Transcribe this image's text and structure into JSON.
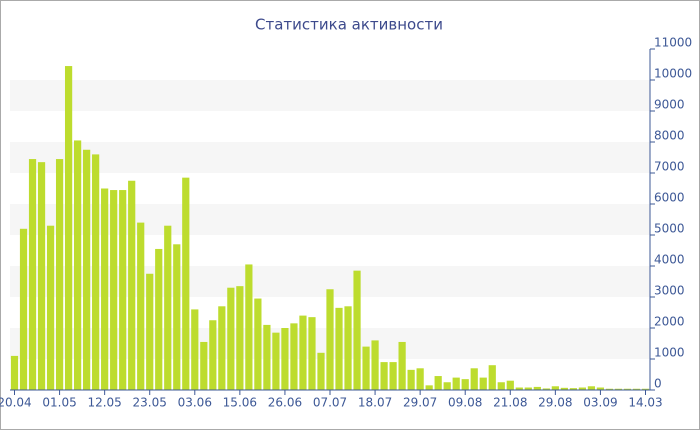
{
  "chart_data": {
    "type": "bar",
    "title": "Статистика активности",
    "categories": [
      "20.04",
      null,
      null,
      null,
      null,
      "01.05",
      null,
      null,
      null,
      null,
      "12.05",
      null,
      null,
      null,
      null,
      "23.05",
      null,
      null,
      null,
      null,
      "03.06",
      null,
      null,
      null,
      null,
      "15.06",
      null,
      null,
      null,
      null,
      "26.06",
      null,
      null,
      null,
      null,
      "07.07",
      null,
      null,
      null,
      null,
      "18.07",
      null,
      null,
      null,
      null,
      "29.07",
      null,
      null,
      null,
      null,
      "09.08",
      null,
      null,
      null,
      null,
      "21.08",
      null,
      null,
      null,
      null,
      "29.08",
      null,
      null,
      null,
      null,
      "03.09",
      null,
      null,
      null,
      null,
      "14.03"
    ],
    "values": [
      1100,
      5200,
      7450,
      7350,
      5300,
      7450,
      10450,
      8050,
      7750,
      7600,
      6500,
      6450,
      6450,
      6750,
      5400,
      3750,
      4550,
      5300,
      4700,
      6850,
      2600,
      1550,
      2250,
      2700,
      3300,
      3350,
      4050,
      2950,
      2100,
      1850,
      2000,
      2150,
      2400,
      2350,
      1200,
      3250,
      2650,
      2700,
      3850,
      1400,
      1600,
      900,
      900,
      1550,
      650,
      700,
      150,
      450,
      250,
      400,
      350,
      700,
      400,
      800,
      250,
      300,
      80,
      80,
      100,
      50,
      120,
      70,
      60,
      80,
      120,
      80,
      40,
      40,
      40,
      40,
      40
    ],
    "color": "#bddc2e",
    "ylim": [
      0,
      11000
    ],
    "yticks": [
      0,
      1000,
      2000,
      3000,
      4000,
      5000,
      6000,
      7000,
      8000,
      9000,
      10000,
      11000
    ],
    "grid": "alternate-bands"
  }
}
